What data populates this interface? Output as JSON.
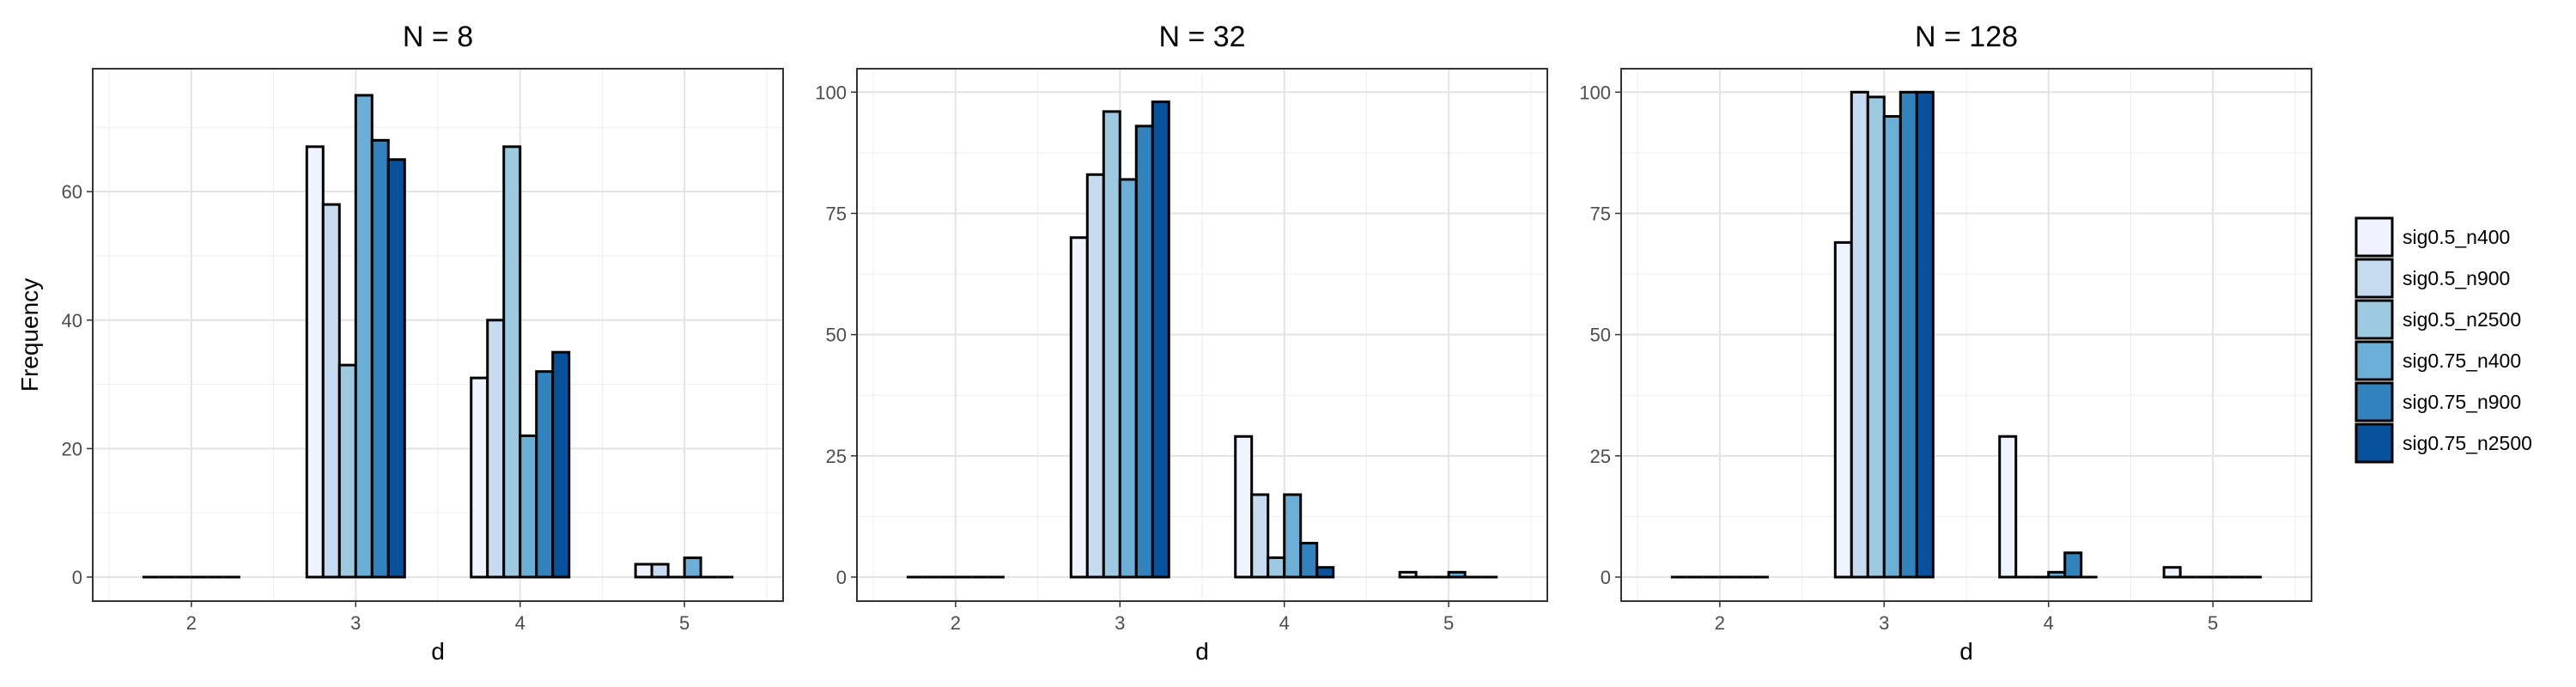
{
  "chart_data": {
    "type": "bar",
    "ylabel": "Frequency",
    "xlabel": "d",
    "categories": [
      "2",
      "3",
      "4",
      "5"
    ],
    "series_names": [
      "sig0.5_n400",
      "sig0.5_n900",
      "sig0.5_n2500",
      "sig0.75_n400",
      "sig0.75_n900",
      "sig0.75_n2500"
    ],
    "series_colors": [
      "#eff3ff",
      "#c6dbef",
      "#9ecae1",
      "#6baed6",
      "#3182bd",
      "#08519c"
    ],
    "grid": true,
    "legend_position": "right",
    "panels": [
      {
        "title": "N = 8",
        "ylim": [
          0,
          77
        ],
        "yticks": [
          0,
          20,
          40,
          60
        ],
        "series": [
          {
            "name": "sig0.5_n400",
            "values": [
              0,
              67,
              31,
              2
            ]
          },
          {
            "name": "sig0.5_n900",
            "values": [
              0,
              58,
              40,
              2
            ]
          },
          {
            "name": "sig0.5_n2500",
            "values": [
              0,
              33,
              67,
              0
            ]
          },
          {
            "name": "sig0.75_n400",
            "values": [
              0,
              75,
              22,
              3
            ]
          },
          {
            "name": "sig0.75_n900",
            "values": [
              0,
              68,
              32,
              0
            ]
          },
          {
            "name": "sig0.75_n2500",
            "values": [
              0,
              65,
              35,
              0
            ]
          }
        ]
      },
      {
        "title": "N = 32",
        "ylim": [
          0,
          102
        ],
        "yticks": [
          0,
          25,
          50,
          75,
          100
        ],
        "series": [
          {
            "name": "sig0.5_n400",
            "values": [
              0,
              70,
              29,
              1
            ]
          },
          {
            "name": "sig0.5_n900",
            "values": [
              0,
              83,
              17,
              0
            ]
          },
          {
            "name": "sig0.5_n2500",
            "values": [
              0,
              96,
              4,
              0
            ]
          },
          {
            "name": "sig0.75_n400",
            "values": [
              0,
              82,
              17,
              1
            ]
          },
          {
            "name": "sig0.75_n900",
            "values": [
              0,
              93,
              7,
              0
            ]
          },
          {
            "name": "sig0.75_n2500",
            "values": [
              0,
              98,
              2,
              0
            ]
          }
        ]
      },
      {
        "title": "N = 128",
        "ylim": [
          0,
          102
        ],
        "yticks": [
          0,
          25,
          50,
          75,
          100
        ],
        "series": [
          {
            "name": "sig0.5_n400",
            "values": [
              0,
              69,
              29,
              2
            ]
          },
          {
            "name": "sig0.5_n900",
            "values": [
              0,
              100,
              0,
              0
            ]
          },
          {
            "name": "sig0.5_n2500",
            "values": [
              0,
              99,
              0,
              0
            ]
          },
          {
            "name": "sig0.75_n400",
            "values": [
              0,
              95,
              1,
              0
            ]
          },
          {
            "name": "sig0.75_n900",
            "values": [
              0,
              100,
              5,
              0
            ]
          },
          {
            "name": "sig0.75_n2500",
            "values": [
              0,
              100,
              0,
              0
            ]
          }
        ]
      }
    ]
  }
}
